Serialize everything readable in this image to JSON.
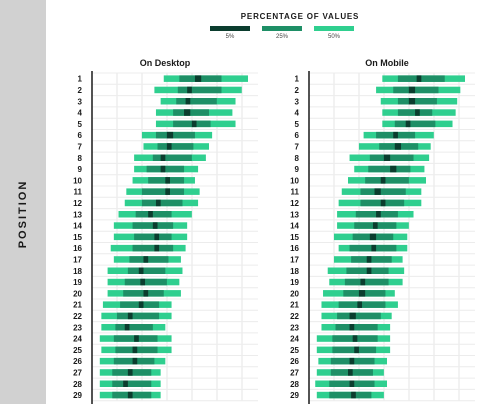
{
  "ylabel": "POSITION",
  "legend": {
    "title": "PERCENTAGE OF VALUES",
    "items": [
      {
        "label": "5%",
        "color": "#0b3d2e"
      },
      {
        "label": "25%",
        "color": "#1e8f66"
      },
      {
        "label": "50%",
        "color": "#2fcf8f"
      }
    ]
  },
  "chart_data": [
    {
      "type": "bar",
      "title": "On Desktop",
      "categories": [
        "1",
        "2",
        "3",
        "4",
        "5",
        "6",
        "7",
        "8",
        "9",
        "10",
        "11",
        "12",
        "13",
        "14",
        "15",
        "16",
        "17",
        "18",
        "19",
        "20",
        "21",
        "22",
        "23",
        "24",
        "25",
        "26",
        "27",
        "28",
        "29"
      ],
      "xlim": [
        0,
        10
      ],
      "band_50": [
        [
          4.6,
          10.0
        ],
        [
          4.0,
          9.6
        ],
        [
          4.4,
          9.2
        ],
        [
          4.1,
          9.0
        ],
        [
          4.1,
          9.2
        ],
        [
          3.2,
          7.7
        ],
        [
          3.3,
          7.5
        ],
        [
          2.7,
          7.3
        ],
        [
          2.7,
          6.8
        ],
        [
          2.6,
          6.6
        ],
        [
          2.2,
          6.9
        ],
        [
          2.1,
          6.8
        ],
        [
          1.7,
          6.4
        ],
        [
          1.4,
          6.1
        ],
        [
          1.4,
          6.1
        ],
        [
          1.2,
          6.0
        ],
        [
          1.4,
          5.7
        ],
        [
          1.0,
          5.8
        ],
        [
          1.0,
          5.6
        ],
        [
          1.0,
          5.7
        ],
        [
          0.7,
          5.1
        ],
        [
          0.6,
          5.1
        ],
        [
          0.6,
          4.7
        ],
        [
          0.5,
          5.1
        ],
        [
          0.6,
          5.1
        ],
        [
          0.5,
          4.7
        ],
        [
          0.5,
          4.4
        ],
        [
          0.5,
          4.4
        ],
        [
          0.5,
          4.4
        ]
      ],
      "band_25": [
        [
          5.6,
          8.3
        ],
        [
          5.5,
          8.3
        ],
        [
          5.4,
          8.0
        ],
        [
          5.2,
          7.5
        ],
        [
          5.2,
          7.6
        ],
        [
          4.1,
          6.6
        ],
        [
          4.2,
          6.5
        ],
        [
          3.9,
          6.4
        ],
        [
          3.5,
          5.9
        ],
        [
          3.6,
          5.9
        ],
        [
          3.2,
          5.9
        ],
        [
          3.2,
          5.8
        ],
        [
          2.8,
          5.1
        ],
        [
          2.6,
          5.2
        ],
        [
          2.7,
          5.1
        ],
        [
          2.6,
          5.2
        ],
        [
          2.4,
          4.9
        ],
        [
          2.3,
          4.7
        ],
        [
          2.1,
          4.8
        ],
        [
          2.0,
          4.6
        ],
        [
          1.8,
          4.3
        ],
        [
          1.6,
          4.3
        ],
        [
          1.5,
          3.9
        ],
        [
          1.4,
          4.2
        ],
        [
          1.5,
          4.2
        ],
        [
          1.4,
          4.0
        ],
        [
          1.3,
          3.8
        ],
        [
          1.3,
          3.8
        ],
        [
          1.3,
          3.8
        ]
      ],
      "band_5": [
        [
          6.6,
          7.0
        ],
        [
          6.1,
          6.4
        ],
        [
          6.0,
          6.3
        ],
        [
          5.9,
          6.3
        ],
        [
          6.4,
          6.7
        ],
        [
          4.8,
          5.2
        ],
        [
          4.8,
          5.1
        ],
        [
          4.4,
          4.7
        ],
        [
          4.4,
          4.7
        ],
        [
          4.7,
          5.0
        ],
        [
          4.7,
          5.0
        ],
        [
          4.1,
          4.4
        ],
        [
          3.6,
          3.9
        ],
        [
          3.9,
          4.2
        ],
        [
          4.0,
          4.3
        ],
        [
          4.0,
          4.3
        ],
        [
          3.3,
          3.6
        ],
        [
          3.0,
          3.3
        ],
        [
          3.1,
          3.4
        ],
        [
          3.3,
          3.6
        ],
        [
          3.0,
          3.3
        ],
        [
          2.3,
          2.6
        ],
        [
          2.1,
          2.4
        ],
        [
          2.7,
          3.0
        ],
        [
          2.6,
          2.9
        ],
        [
          2.6,
          2.9
        ],
        [
          2.3,
          2.6
        ],
        [
          2.0,
          2.3
        ],
        [
          2.3,
          2.6
        ]
      ]
    },
    {
      "type": "bar",
      "title": "On Mobile",
      "categories": [
        "1",
        "2",
        "3",
        "4",
        "5",
        "6",
        "7",
        "8",
        "9",
        "10",
        "11",
        "12",
        "13",
        "14",
        "15",
        "16",
        "17",
        "18",
        "19",
        "20",
        "21",
        "22",
        "23",
        "24",
        "25",
        "26",
        "27",
        "28",
        "29"
      ],
      "xlim": [
        0,
        10
      ],
      "band_50": [
        [
          4.7,
          10.0
        ],
        [
          4.3,
          9.7
        ],
        [
          4.6,
          9.5
        ],
        [
          4.7,
          9.4
        ],
        [
          4.7,
          9.2
        ],
        [
          3.5,
          8.0
        ],
        [
          3.2,
          7.8
        ],
        [
          2.6,
          7.7
        ],
        [
          2.9,
          7.4
        ],
        [
          2.5,
          7.5
        ],
        [
          2.1,
          7.2
        ],
        [
          1.9,
          7.2
        ],
        [
          1.8,
          6.7
        ],
        [
          1.8,
          6.4
        ],
        [
          1.6,
          6.3
        ],
        [
          1.9,
          6.3
        ],
        [
          1.6,
          6.0
        ],
        [
          1.2,
          6.1
        ],
        [
          1.3,
          6.0
        ],
        [
          0.9,
          5.5
        ],
        [
          0.8,
          5.7
        ],
        [
          0.8,
          5.3
        ],
        [
          0.8,
          5.2
        ],
        [
          0.5,
          5.2
        ],
        [
          0.5,
          5.2
        ],
        [
          0.6,
          5.0
        ],
        [
          0.5,
          4.8
        ],
        [
          0.4,
          5.0
        ],
        [
          0.5,
          4.8
        ]
      ],
      "band_25": [
        [
          5.7,
          8.7
        ],
        [
          5.4,
          8.3
        ],
        [
          5.7,
          8.2
        ],
        [
          5.7,
          7.9
        ],
        [
          5.5,
          8.1
        ],
        [
          4.3,
          6.8
        ],
        [
          4.5,
          7.0
        ],
        [
          3.9,
          6.7
        ],
        [
          3.8,
          6.5
        ],
        [
          3.6,
          6.4
        ],
        [
          3.3,
          6.2
        ],
        [
          3.3,
          6.1
        ],
        [
          3.0,
          5.7
        ],
        [
          2.9,
          5.6
        ],
        [
          2.8,
          5.4
        ],
        [
          2.6,
          5.6
        ],
        [
          2.7,
          5.3
        ],
        [
          2.4,
          5.1
        ],
        [
          2.3,
          5.1
        ],
        [
          2.2,
          4.9
        ],
        [
          1.9,
          4.9
        ],
        [
          1.8,
          4.6
        ],
        [
          1.7,
          4.4
        ],
        [
          1.5,
          4.4
        ],
        [
          1.5,
          4.3
        ],
        [
          1.4,
          4.2
        ],
        [
          1.4,
          4.1
        ],
        [
          1.3,
          4.2
        ],
        [
          1.3,
          4.0
        ]
      ],
      "band_5": [
        [
          6.9,
          7.2
        ],
        [
          6.4,
          6.8
        ],
        [
          6.4,
          6.8
        ],
        [
          6.8,
          7.1
        ],
        [
          6.2,
          6.5
        ],
        [
          5.4,
          5.7
        ],
        [
          5.5,
          5.9
        ],
        [
          4.8,
          5.2
        ],
        [
          5.2,
          5.6
        ],
        [
          4.6,
          4.9
        ],
        [
          4.2,
          4.6
        ],
        [
          4.6,
          4.9
        ],
        [
          4.3,
          4.6
        ],
        [
          4.1,
          4.4
        ],
        [
          3.9,
          4.3
        ],
        [
          4.0,
          4.3
        ],
        [
          3.7,
          4.0
        ],
        [
          3.7,
          4.0
        ],
        [
          3.3,
          3.6
        ],
        [
          3.2,
          3.6
        ],
        [
          3.1,
          3.4
        ],
        [
          2.6,
          3.0
        ],
        [
          2.6,
          2.9
        ],
        [
          2.8,
          3.1
        ],
        [
          2.9,
          3.2
        ],
        [
          2.6,
          2.9
        ],
        [
          2.5,
          2.8
        ],
        [
          2.6,
          2.9
        ],
        [
          2.7,
          3.0
        ]
      ]
    }
  ]
}
